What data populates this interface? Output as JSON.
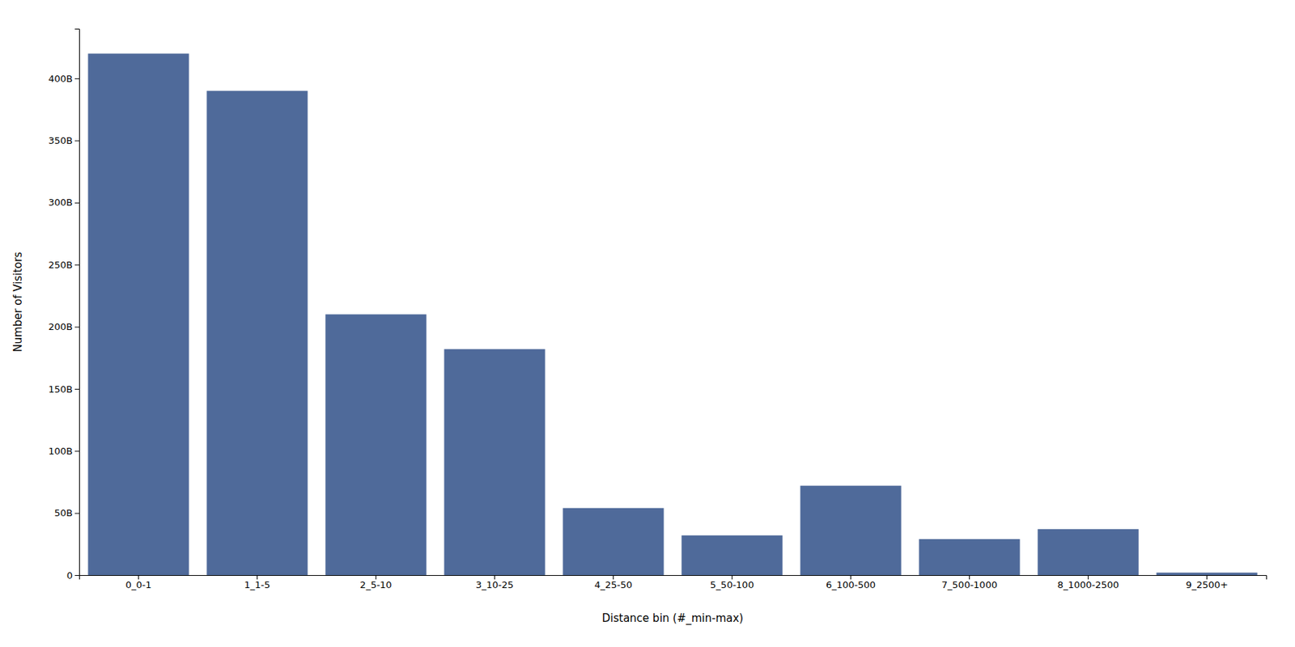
{
  "chart_data": {
    "type": "bar",
    "categories": [
      "0_0-1",
      "1_1-5",
      "2_5-10",
      "3_10-25",
      "4_25-50",
      "5_50-100",
      "6_100-500",
      "7_500-1000",
      "8_1000-2500",
      "9_2500+"
    ],
    "values": [
      420000000000.0,
      390000000000.0,
      210000000000.0,
      182000000000.0,
      54000000000.0,
      32000000000.0,
      72000000000.0,
      29000000000.0,
      37000000000.0,
      2000000000.0
    ],
    "color": "#4f6a9a",
    "xlabel": "Distance bin (#_min-max)",
    "ylabel": "Number of Visitors",
    "ylim": [
      0,
      440000000000.0
    ],
    "yticks": [
      0,
      {
        "value": 50000000000.0,
        "label": "50B"
      },
      {
        "value": 100000000000.0,
        "label": "100B"
      },
      {
        "value": 150000000000.0,
        "label": "150B"
      },
      {
        "value": 200000000000.0,
        "label": "200B"
      },
      {
        "value": 250000000000.0,
        "label": "250B"
      },
      {
        "value": 300000000000.0,
        "label": "300B"
      },
      {
        "value": 350000000000.0,
        "label": "350B"
      },
      {
        "value": 400000000000.0,
        "label": "400B"
      }
    ],
    "grid": false
  }
}
